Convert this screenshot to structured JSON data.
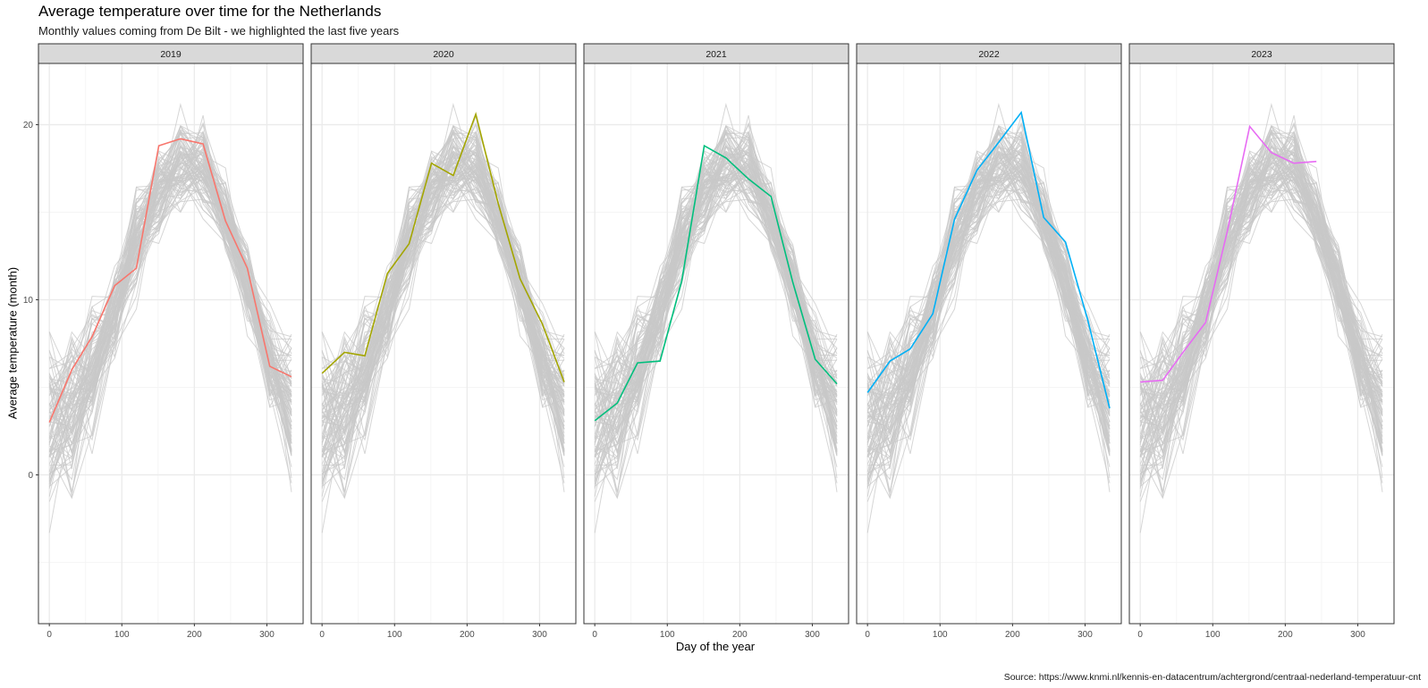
{
  "title": "Average temperature over time for the Netherlands",
  "subtitle": "Monthly values coming from De Bilt - we highlighted the last five years",
  "caption": "Source: https://www.knmi.nl/kennis-en-datacentrum/achtergrond/centraal-nederland-temperatuur-cnt",
  "colors": {
    "background_lines": "#c8c8c8",
    "strip_fill": "#d9d9d9",
    "panel_border": "#333333",
    "grid_major": "#ebebeb",
    "grid_minor": "#f5f5f5"
  },
  "chart_data": {
    "type": "line",
    "facet_by": "year",
    "xlabel": "Day of the year",
    "ylabel": "Average temperature (month)",
    "xlim": [
      -15,
      350
    ],
    "ylim": [
      -8.5,
      23.5
    ],
    "x_ticks": [
      0,
      100,
      200,
      300
    ],
    "y_ticks": [
      0,
      10,
      20
    ],
    "grid": true,
    "legend": "none",
    "x_days": [
      0,
      31,
      59,
      90,
      120,
      151,
      181,
      212,
      243,
      273,
      304,
      334
    ],
    "background_series_description": "grey lines: all other years of monthly averages, repeated in every panel",
    "panels": [
      {
        "label": "2019",
        "color": "#F8766D",
        "values": [
          3.0,
          6.0,
          7.9,
          10.8,
          11.8,
          18.8,
          19.2,
          18.9,
          14.5,
          11.8,
          6.2,
          5.6
        ]
      },
      {
        "label": "2020",
        "color": "#A3A500",
        "values": [
          5.8,
          7.0,
          6.8,
          11.5,
          13.2,
          17.8,
          17.1,
          20.6,
          15.5,
          11.2,
          8.6,
          5.3
        ]
      },
      {
        "label": "2021",
        "color": "#00BF7D",
        "values": [
          3.1,
          4.1,
          6.4,
          6.5,
          11.1,
          18.8,
          18.1,
          16.9,
          15.9,
          11.0,
          6.6,
          5.2
        ]
      },
      {
        "label": "2022",
        "color": "#00B0F6",
        "values": [
          4.7,
          6.5,
          7.2,
          9.2,
          14.6,
          17.4,
          19.0,
          20.7,
          14.7,
          13.3,
          8.8,
          3.8
        ]
      },
      {
        "label": "2023",
        "color": "#E76BF3",
        "values": [
          5.3,
          5.4,
          7.0,
          8.7,
          13.9,
          19.9,
          18.4,
          17.8,
          17.9,
          null,
          null,
          null
        ]
      }
    ]
  }
}
